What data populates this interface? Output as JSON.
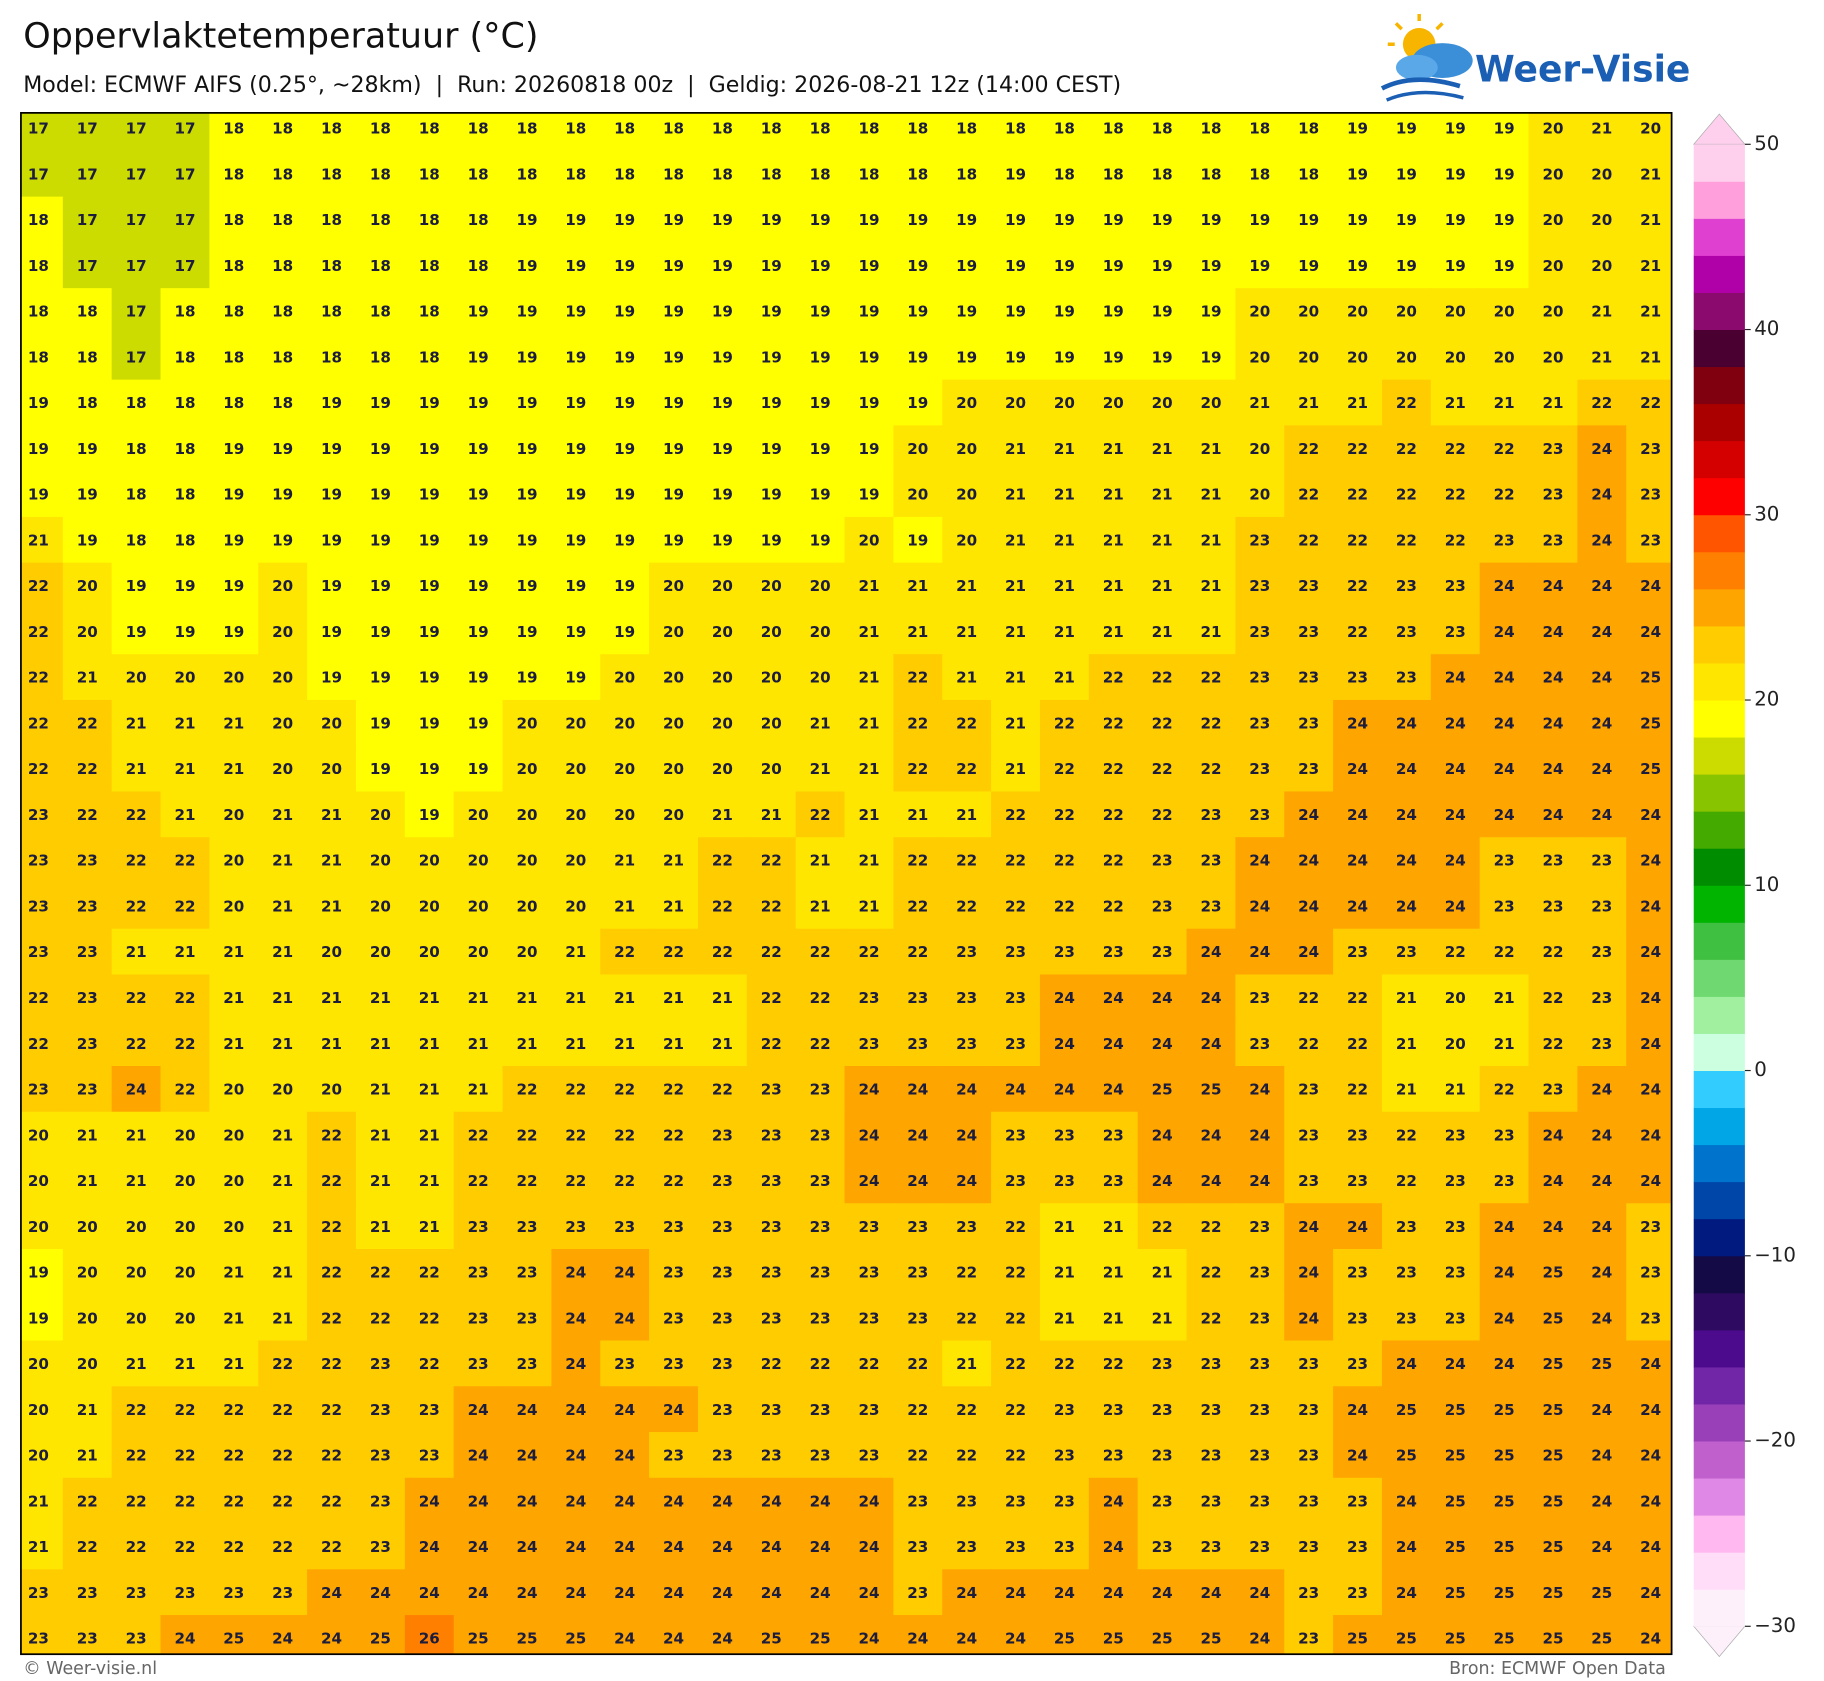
{
  "header": {
    "title": "Oppervlaktetemperatuur (°C)",
    "subtitle": "Model: ECMWF AIFS (0.25°, ~28km)  |  Run: 20260818 00z  |  Geldig: 2026-08-21 12z (14:00 CEST)",
    "logo": "Weer-Visie"
  },
  "map": {
    "type": "grid",
    "values": [
      [
        17,
        17,
        17,
        17,
        18,
        18,
        18,
        18,
        18,
        18,
        18,
        18,
        18,
        18,
        18,
        18,
        18,
        18,
        18,
        18,
        18,
        18,
        18,
        18,
        18,
        18,
        18,
        19,
        19,
        19,
        19,
        20,
        21,
        20
      ],
      [
        17,
        17,
        17,
        17,
        18,
        18,
        18,
        18,
        18,
        18,
        18,
        18,
        18,
        18,
        18,
        18,
        18,
        18,
        18,
        18,
        19,
        18,
        18,
        18,
        18,
        18,
        18,
        19,
        19,
        19,
        19,
        20,
        20,
        21
      ],
      [
        18,
        17,
        17,
        17,
        18,
        18,
        18,
        18,
        18,
        18,
        19,
        19,
        19,
        19,
        19,
        19,
        19,
        19,
        19,
        19,
        19,
        19,
        19,
        19,
        19,
        19,
        19,
        19,
        19,
        19,
        19,
        20,
        20,
        21
      ],
      [
        18,
        17,
        17,
        17,
        18,
        18,
        18,
        18,
        18,
        18,
        19,
        19,
        19,
        19,
        19,
        19,
        19,
        19,
        19,
        19,
        19,
        19,
        19,
        19,
        19,
        19,
        19,
        19,
        19,
        19,
        19,
        20,
        20,
        21
      ],
      [
        18,
        18,
        17,
        18,
        18,
        18,
        18,
        18,
        18,
        19,
        19,
        19,
        19,
        19,
        19,
        19,
        19,
        19,
        19,
        19,
        19,
        19,
        19,
        19,
        19,
        20,
        20,
        20,
        20,
        20,
        20,
        20,
        21,
        21
      ],
      [
        18,
        18,
        17,
        18,
        18,
        18,
        18,
        18,
        18,
        19,
        19,
        19,
        19,
        19,
        19,
        19,
        19,
        19,
        19,
        19,
        19,
        19,
        19,
        19,
        19,
        20,
        20,
        20,
        20,
        20,
        20,
        20,
        21,
        21
      ],
      [
        19,
        18,
        18,
        18,
        18,
        18,
        19,
        19,
        19,
        19,
        19,
        19,
        19,
        19,
        19,
        19,
        19,
        19,
        19,
        20,
        20,
        20,
        20,
        20,
        20,
        21,
        21,
        21,
        22,
        21,
        21,
        21,
        22,
        22
      ],
      [
        19,
        19,
        18,
        18,
        19,
        19,
        19,
        19,
        19,
        19,
        19,
        19,
        19,
        19,
        19,
        19,
        19,
        19,
        20,
        20,
        21,
        21,
        21,
        21,
        21,
        20,
        22,
        22,
        22,
        22,
        22,
        23,
        24,
        23
      ],
      [
        19,
        19,
        18,
        18,
        19,
        19,
        19,
        19,
        19,
        19,
        19,
        19,
        19,
        19,
        19,
        19,
        19,
        19,
        20,
        20,
        21,
        21,
        21,
        21,
        21,
        20,
        22,
        22,
        22,
        22,
        22,
        23,
        24,
        23
      ],
      [
        21,
        19,
        18,
        18,
        19,
        19,
        19,
        19,
        19,
        19,
        19,
        19,
        19,
        19,
        19,
        19,
        19,
        20,
        19,
        20,
        21,
        21,
        21,
        21,
        21,
        23,
        22,
        22,
        22,
        22,
        23,
        23,
        24,
        23
      ],
      [
        22,
        20,
        19,
        19,
        19,
        20,
        19,
        19,
        19,
        19,
        19,
        19,
        19,
        20,
        20,
        20,
        20,
        21,
        21,
        21,
        21,
        21,
        21,
        21,
        21,
        23,
        23,
        22,
        23,
        23,
        24,
        24,
        24,
        24
      ],
      [
        22,
        20,
        19,
        19,
        19,
        20,
        19,
        19,
        19,
        19,
        19,
        19,
        19,
        20,
        20,
        20,
        20,
        21,
        21,
        21,
        21,
        21,
        21,
        21,
        21,
        23,
        23,
        22,
        23,
        23,
        24,
        24,
        24,
        24
      ],
      [
        22,
        21,
        20,
        20,
        20,
        20,
        19,
        19,
        19,
        19,
        19,
        19,
        20,
        20,
        20,
        20,
        20,
        21,
        22,
        21,
        21,
        21,
        22,
        22,
        22,
        23,
        23,
        23,
        23,
        24,
        24,
        24,
        24,
        25
      ],
      [
        22,
        22,
        21,
        21,
        21,
        20,
        20,
        19,
        19,
        19,
        20,
        20,
        20,
        20,
        20,
        20,
        21,
        21,
        22,
        22,
        21,
        22,
        22,
        22,
        22,
        23,
        23,
        24,
        24,
        24,
        24,
        24,
        24,
        25
      ],
      [
        22,
        22,
        21,
        21,
        21,
        20,
        20,
        19,
        19,
        19,
        20,
        20,
        20,
        20,
        20,
        20,
        21,
        21,
        22,
        22,
        21,
        22,
        22,
        22,
        22,
        23,
        23,
        24,
        24,
        24,
        24,
        24,
        24,
        25
      ],
      [
        23,
        22,
        22,
        21,
        20,
        21,
        21,
        20,
        19,
        20,
        20,
        20,
        20,
        20,
        21,
        21,
        22,
        21,
        21,
        21,
        22,
        22,
        22,
        22,
        23,
        23,
        24,
        24,
        24,
        24,
        24,
        24,
        24,
        24
      ],
      [
        23,
        23,
        22,
        22,
        20,
        21,
        21,
        20,
        20,
        20,
        20,
        20,
        21,
        21,
        22,
        22,
        21,
        21,
        22,
        22,
        22,
        22,
        22,
        23,
        23,
        24,
        24,
        24,
        24,
        24,
        23,
        23,
        23,
        24
      ],
      [
        23,
        23,
        22,
        22,
        20,
        21,
        21,
        20,
        20,
        20,
        20,
        20,
        21,
        21,
        22,
        22,
        21,
        21,
        22,
        22,
        22,
        22,
        22,
        23,
        23,
        24,
        24,
        24,
        24,
        24,
        23,
        23,
        23,
        24
      ],
      [
        23,
        23,
        21,
        21,
        21,
        21,
        20,
        20,
        20,
        20,
        20,
        21,
        22,
        22,
        22,
        22,
        22,
        22,
        22,
        23,
        23,
        23,
        23,
        23,
        24,
        24,
        24,
        23,
        23,
        22,
        22,
        22,
        23,
        24
      ],
      [
        22,
        23,
        22,
        22,
        21,
        21,
        21,
        21,
        21,
        21,
        21,
        21,
        21,
        21,
        21,
        22,
        22,
        23,
        23,
        23,
        23,
        24,
        24,
        24,
        24,
        23,
        22,
        22,
        21,
        20,
        21,
        22,
        23,
        24
      ],
      [
        22,
        23,
        22,
        22,
        21,
        21,
        21,
        21,
        21,
        21,
        21,
        21,
        21,
        21,
        21,
        22,
        22,
        23,
        23,
        23,
        23,
        24,
        24,
        24,
        24,
        23,
        22,
        22,
        21,
        20,
        21,
        22,
        23,
        24
      ],
      [
        23,
        23,
        24,
        22,
        20,
        20,
        20,
        21,
        21,
        21,
        22,
        22,
        22,
        22,
        22,
        23,
        23,
        24,
        24,
        24,
        24,
        24,
        24,
        25,
        25,
        24,
        23,
        22,
        21,
        21,
        22,
        23,
        24,
        24
      ],
      [
        20,
        21,
        21,
        20,
        20,
        21,
        22,
        21,
        21,
        22,
        22,
        22,
        22,
        22,
        23,
        23,
        23,
        24,
        24,
        24,
        23,
        23,
        23,
        24,
        24,
        24,
        23,
        23,
        22,
        23,
        23,
        24,
        24,
        24
      ],
      [
        20,
        21,
        21,
        20,
        20,
        21,
        22,
        21,
        21,
        22,
        22,
        22,
        22,
        22,
        23,
        23,
        23,
        24,
        24,
        24,
        23,
        23,
        23,
        24,
        24,
        24,
        23,
        23,
        22,
        23,
        23,
        24,
        24,
        24
      ],
      [
        20,
        20,
        20,
        20,
        20,
        21,
        22,
        21,
        21,
        23,
        23,
        23,
        23,
        23,
        23,
        23,
        23,
        23,
        23,
        23,
        22,
        21,
        21,
        22,
        22,
        23,
        24,
        24,
        23,
        23,
        24,
        24,
        24,
        23
      ],
      [
        19,
        20,
        20,
        20,
        21,
        21,
        22,
        22,
        22,
        23,
        23,
        24,
        24,
        23,
        23,
        23,
        23,
        23,
        23,
        22,
        22,
        21,
        21,
        21,
        22,
        23,
        24,
        23,
        23,
        23,
        24,
        25,
        24,
        23
      ],
      [
        19,
        20,
        20,
        20,
        21,
        21,
        22,
        22,
        22,
        23,
        23,
        24,
        24,
        23,
        23,
        23,
        23,
        23,
        23,
        22,
        22,
        21,
        21,
        21,
        22,
        23,
        24,
        23,
        23,
        23,
        24,
        25,
        24,
        23
      ],
      [
        20,
        20,
        21,
        21,
        21,
        22,
        22,
        23,
        22,
        23,
        23,
        24,
        23,
        23,
        23,
        22,
        22,
        22,
        22,
        21,
        22,
        22,
        22,
        23,
        23,
        23,
        23,
        23,
        24,
        24,
        24,
        25,
        25,
        24
      ],
      [
        20,
        21,
        22,
        22,
        22,
        22,
        22,
        23,
        23,
        24,
        24,
        24,
        24,
        24,
        23,
        23,
        23,
        23,
        22,
        22,
        22,
        23,
        23,
        23,
        23,
        23,
        23,
        24,
        25,
        25,
        25,
        25,
        24,
        24
      ],
      [
        20,
        21,
        22,
        22,
        22,
        22,
        22,
        23,
        23,
        24,
        24,
        24,
        24,
        23,
        23,
        23,
        23,
        23,
        22,
        22,
        22,
        23,
        23,
        23,
        23,
        23,
        23,
        24,
        25,
        25,
        25,
        25,
        24,
        24
      ],
      [
        21,
        22,
        22,
        22,
        22,
        22,
        22,
        23,
        24,
        24,
        24,
        24,
        24,
        24,
        24,
        24,
        24,
        24,
        23,
        23,
        23,
        23,
        24,
        23,
        23,
        23,
        23,
        23,
        24,
        25,
        25,
        25,
        24,
        24
      ],
      [
        21,
        22,
        22,
        22,
        22,
        22,
        22,
        23,
        24,
        24,
        24,
        24,
        24,
        24,
        24,
        24,
        24,
        24,
        23,
        23,
        23,
        23,
        24,
        23,
        23,
        23,
        23,
        23,
        24,
        25,
        25,
        25,
        24,
        24
      ],
      [
        23,
        23,
        23,
        23,
        23,
        23,
        24,
        24,
        24,
        24,
        24,
        24,
        24,
        24,
        24,
        24,
        24,
        24,
        23,
        24,
        24,
        24,
        24,
        24,
        24,
        24,
        23,
        23,
        24,
        25,
        25,
        25,
        25,
        24
      ],
      [
        23,
        23,
        23,
        24,
        25,
        24,
        24,
        25,
        26,
        25,
        25,
        25,
        24,
        24,
        24,
        25,
        25,
        24,
        24,
        24,
        24,
        25,
        25,
        25,
        25,
        24,
        23,
        25,
        25,
        25,
        25,
        25,
        25,
        24
      ]
    ]
  },
  "colorbar": {
    "range": [
      -30,
      50
    ],
    "ticks": [
      {
        "value": -30,
        "label": "−30"
      },
      {
        "value": -20,
        "label": "−20"
      },
      {
        "value": -10,
        "label": "−10"
      },
      0,
      10,
      20,
      30,
      40,
      50
    ],
    "colors": [
      "#fdf0fb",
      "#ffdcf8",
      "#ffb8f0",
      "#e088e6",
      "#c060cc",
      "#9940b8",
      "#7026a6",
      "#4c0a8c",
      "#2e0a60",
      "#140a46",
      "#001a80",
      "#0046a8",
      "#0073cc",
      "#00a6e6",
      "#33ccff",
      "#ccffe0",
      "#a0f0a0",
      "#70d870",
      "#40c040",
      "#00b400",
      "#008c00",
      "#44aa00",
      "#88c400",
      "#ccdc00",
      "#ffff00",
      "#ffe600",
      "#ffcc00",
      "#ffa500",
      "#ff8000",
      "#ff5500",
      "#ff0000",
      "#d40000",
      "#aa0000",
      "#800010",
      "#4a0030",
      "#8a0a6e",
      "#b000a8",
      "#e040d0",
      "#ffa0dc",
      "#ffd0ee"
    ]
  },
  "footer": {
    "left": "© Weer-visie.nl",
    "right": "Bron: ECMWF Open Data"
  }
}
